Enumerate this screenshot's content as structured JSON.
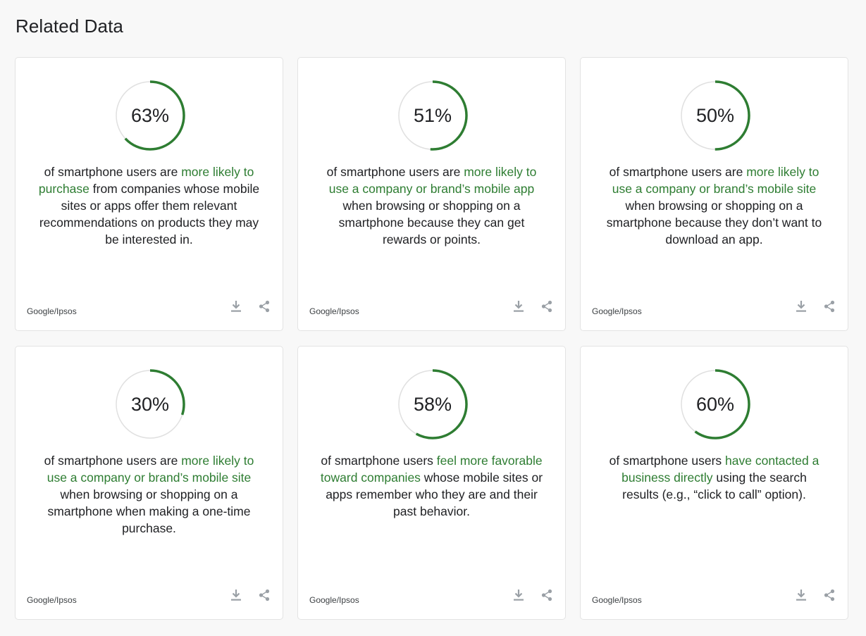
{
  "section": {
    "title": "Related Data"
  },
  "colors": {
    "accent": "#2e7d32",
    "track": "#e0e0e0",
    "icon": "#9aa0a6"
  },
  "cards": [
    {
      "percent_value": 63,
      "percent_label": "63%",
      "text_before": "of smartphone users are ",
      "highlight": "more likely to purchase",
      "text_after": " from companies whose mobile sites or apps offer them relevant recommendations on products they may be interested in.",
      "source": "Google/Ipsos"
    },
    {
      "percent_value": 51,
      "percent_label": "51%",
      "text_before": "of smartphone users are ",
      "highlight": "more likely to use a company or brand’s mobile app",
      "text_after": " when browsing or shopping on a smartphone because they can get rewards or points.",
      "source": "Google/Ipsos"
    },
    {
      "percent_value": 50,
      "percent_label": "50%",
      "text_before": "of smartphone users are ",
      "highlight": "more likely to use a company or brand’s mobile site",
      "text_after": " when browsing or shopping on a smartphone because they don’t want to download an app.",
      "source": "Google/Ipsos"
    },
    {
      "percent_value": 30,
      "percent_label": "30%",
      "text_before": "of smartphone users are ",
      "highlight": "more likely to use a company or brand’s mobile site",
      "text_after": " when browsing or shopping on a smartphone when making a one-time purchase.",
      "source": "Google/Ipsos"
    },
    {
      "percent_value": 58,
      "percent_label": "58%",
      "text_before": "of smartphone users ",
      "highlight": "feel more favorable toward companies",
      "text_after": " whose mobile sites or apps remember who they are and their past behavior.",
      "source": "Google/Ipsos"
    },
    {
      "percent_value": 60,
      "percent_label": "60%",
      "text_before": "of smartphone users ",
      "highlight": "have contacted a business directly",
      "text_after": " using the search results (e.g., “click to call” option).",
      "source": "Google/Ipsos"
    }
  ]
}
